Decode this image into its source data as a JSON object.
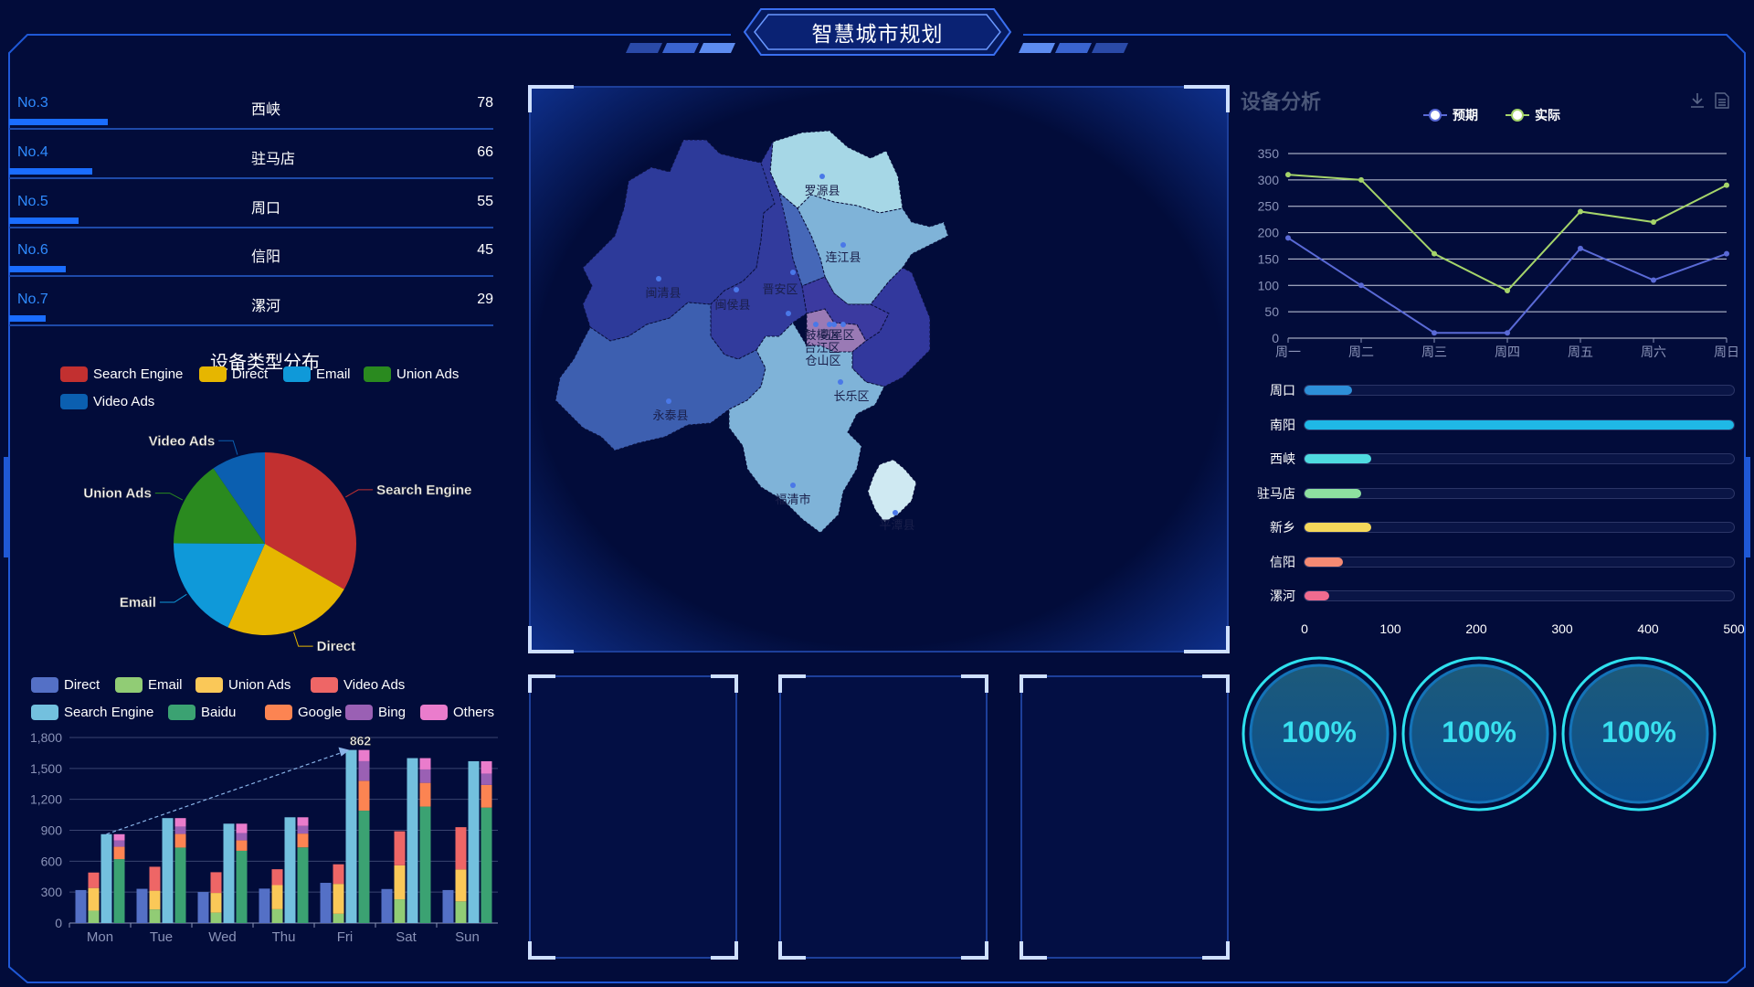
{
  "header": {
    "title": "智慧城市规划"
  },
  "ranking": [
    {
      "no": "No.3",
      "name": "西峡",
      "value": 78
    },
    {
      "no": "No.4",
      "name": "驻马店",
      "value": 66
    },
    {
      "no": "No.5",
      "name": "周口",
      "value": 55
    },
    {
      "no": "No.6",
      "name": "信阳",
      "value": 45
    },
    {
      "no": "No.7",
      "name": "漯河",
      "value": 29
    }
  ],
  "pie": {
    "title": "设备类型分布",
    "legend": [
      "Search Engine",
      "Direct",
      "Email",
      "Union Ads",
      "Video Ads"
    ],
    "colors": {
      "Search Engine": "#c23030",
      "Direct": "#e6b600",
      "Email": "#0f99d9",
      "Union Ads": "#2a8a1f",
      "Video Ads": "#0b5fb0"
    },
    "chart_data": {
      "type": "pie",
      "labels": [
        "Search Engine",
        "Direct",
        "Email",
        "Union Ads",
        "Video Ads"
      ],
      "values": [
        1048,
        735,
        580,
        484,
        300
      ]
    }
  },
  "map": {
    "regions": [
      "罗源县",
      "连江县",
      "闽清县",
      "闽侯县",
      "晋安区",
      "鼓楼区",
      "台江区",
      "仓山区",
      "马尾区",
      "长乐区",
      "永泰县",
      "福清市",
      "平潭县"
    ]
  },
  "line": {
    "title": "设备分析",
    "legend": [
      "预期",
      "实际"
    ],
    "chart_data": {
      "type": "line",
      "x": [
        "周一",
        "周二",
        "周三",
        "周四",
        "周五",
        "周六",
        "周日"
      ],
      "series": [
        {
          "name": "预期",
          "values": [
            190,
            100,
            10,
            10,
            170,
            110,
            160
          ],
          "color": "#5a6ad6"
        },
        {
          "name": "实际",
          "values": [
            310,
            300,
            160,
            90,
            240,
            220,
            290
          ],
          "color": "#a5d46a"
        }
      ],
      "ylim": [
        0,
        350
      ],
      "yticks": [
        0,
        50,
        100,
        150,
        200,
        250,
        300,
        350
      ]
    }
  },
  "hbar": {
    "chart_data": {
      "type": "bar",
      "categories": [
        "周口",
        "南阳",
        "西峡",
        "驻马店",
        "新乡",
        "信阳",
        "漯河"
      ],
      "values": [
        55,
        500,
        78,
        66,
        78,
        45,
        29
      ],
      "colors": [
        "#2d8fd8",
        "#1fb8e6",
        "#4fdbe0",
        "#8ee0a0",
        "#f5d85a",
        "#f58a73",
        "#f06b8f"
      ],
      "xlim": [
        0,
        500
      ],
      "xticks": [
        0,
        100,
        200,
        300,
        400,
        500
      ]
    }
  },
  "gauges": [
    {
      "label": "100%"
    },
    {
      "label": "100%"
    },
    {
      "label": "100%"
    }
  ],
  "stacked": {
    "legend": [
      "Direct",
      "Email",
      "Union Ads",
      "Video Ads",
      "Search Engine",
      "Baidu",
      "Google",
      "Bing",
      "Others"
    ],
    "colors": {
      "Direct": "#5470c6",
      "Email": "#91cc75",
      "Union Ads": "#fac858",
      "Video Ads": "#ee6666",
      "Search Engine": "#73c0de",
      "Baidu": "#3ba272",
      "Google": "#fc8452",
      "Bing": "#9a60b4",
      "Others": "#ea7ccc"
    },
    "chart_data": {
      "type": "bar",
      "categories": [
        "Mon",
        "Tue",
        "Wed",
        "Thu",
        "Fri",
        "Sat",
        "Sun"
      ],
      "ylim": [
        0,
        1800
      ],
      "yticks": [
        0,
        300,
        600,
        900,
        1200,
        1500,
        1800
      ],
      "ytick_labels": [
        "0",
        "300",
        "600",
        "900",
        "1,200",
        "1,500",
        "1,800"
      ],
      "series": [
        {
          "name": "Direct",
          "stack": "a",
          "values": [
            320,
            332,
            301,
            334,
            390,
            330,
            320
          ]
        },
        {
          "name": "Email",
          "stack": "b",
          "values": [
            120,
            132,
            101,
            134,
            90,
            230,
            210
          ]
        },
        {
          "name": "Union Ads",
          "stack": "b",
          "values": [
            220,
            182,
            191,
            234,
            290,
            330,
            310
          ]
        },
        {
          "name": "Video Ads",
          "stack": "b",
          "values": [
            150,
            232,
            201,
            154,
            190,
            330,
            410
          ]
        },
        {
          "name": "Search Engine",
          "stack": "c",
          "values": [
            862,
            1018,
            964,
            1026,
            1679,
            1600,
            1570
          ]
        },
        {
          "name": "Baidu",
          "stack": "d",
          "values": [
            620,
            732,
            701,
            734,
            1090,
            1130,
            1120
          ]
        },
        {
          "name": "Google",
          "stack": "d",
          "values": [
            120,
            132,
            101,
            134,
            290,
            230,
            220
          ]
        },
        {
          "name": "Bing",
          "stack": "d",
          "values": [
            60,
            72,
            71,
            74,
            190,
            130,
            110
          ]
        },
        {
          "name": "Others",
          "stack": "d",
          "values": [
            62,
            82,
            91,
            84,
            109,
            110,
            120
          ]
        }
      ],
      "annotation": {
        "label": "862"
      }
    }
  }
}
